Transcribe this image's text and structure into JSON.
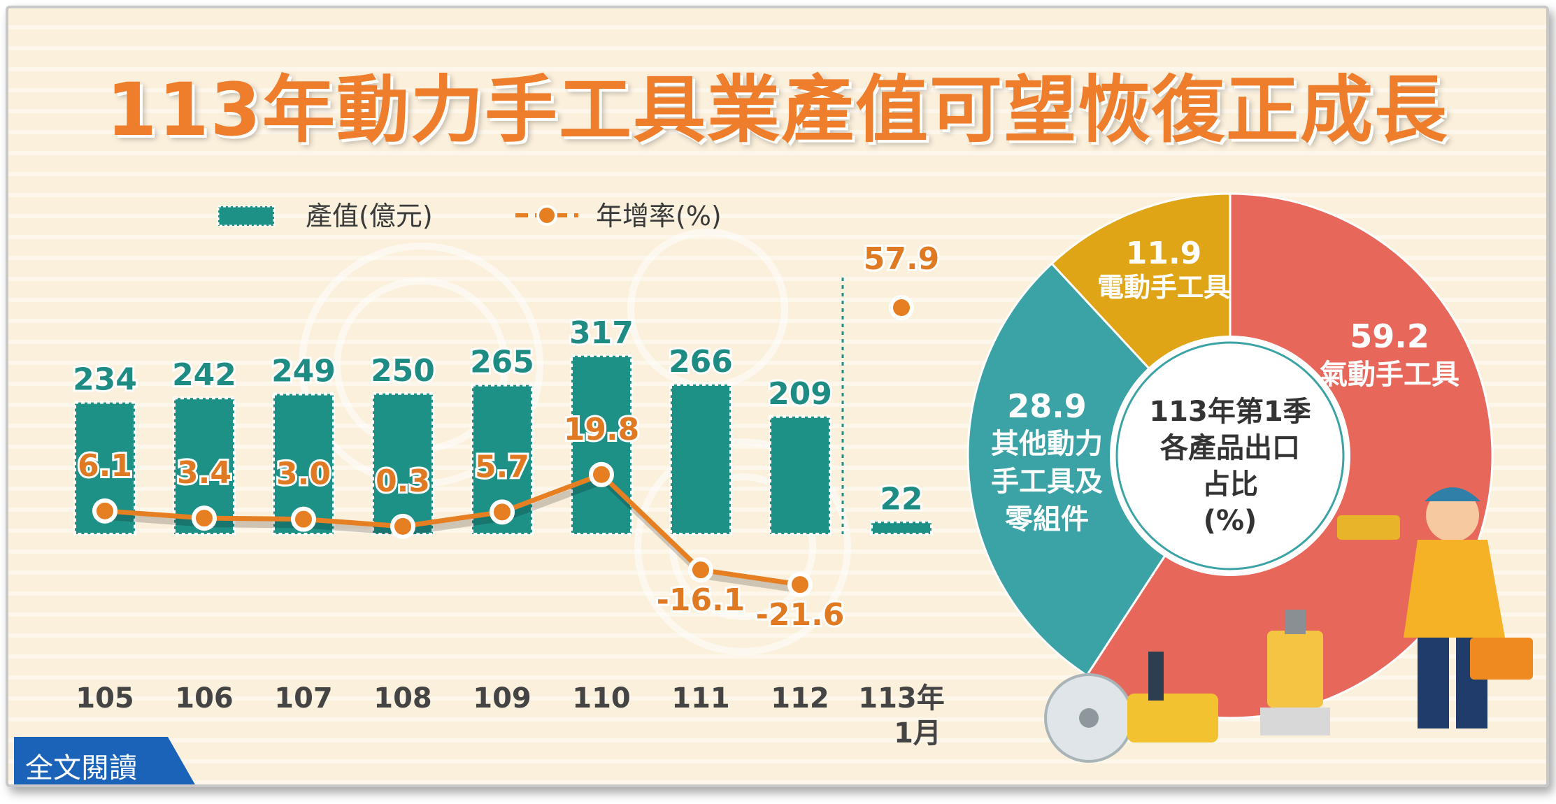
{
  "title": "113年動力手工具業產值可望恢復正成長",
  "read_full_label": "全文閱讀",
  "colors": {
    "title": "#ee7d2c",
    "bar": "#1e9187",
    "line": "#e67e22",
    "bar_label": "#1e8c83",
    "line_label": "#e07a22",
    "pie_pneumatic": "#e8675b",
    "pie_other": "#3ba3a5",
    "pie_electric": "#e0a516"
  },
  "chart_data": [
    {
      "type": "bar",
      "legend_placement": "top",
      "categories": [
        "105",
        "106",
        "107",
        "108",
        "109",
        "110",
        "111",
        "112",
        "113年1月"
      ],
      "series": [
        {
          "name": "產值(億元)",
          "type": "bar",
          "values": [
            234,
            242,
            249,
            250,
            265,
            317,
            266,
            209,
            22
          ]
        },
        {
          "name": "年增率(%)",
          "type": "line",
          "values": [
            6.1,
            3.4,
            3.0,
            0.3,
            5.7,
            19.8,
            -16.1,
            -21.6,
            57.9
          ]
        }
      ],
      "value_labels": [
        "234",
        "242",
        "249",
        "250",
        "265",
        "317",
        "266",
        "209",
        "22"
      ],
      "rate_labels": [
        "6.1",
        "3.4",
        "3.0",
        "0.3",
        "5.7",
        "19.8",
        "-16.1",
        "-21.6",
        "57.9"
      ],
      "tick_labels": [
        "105",
        "106",
        "107",
        "108",
        "109",
        "110",
        "111",
        "112",
        "113年",
        "1月"
      ],
      "grid": false
    },
    {
      "type": "pie",
      "center_label": [
        "113年第1季",
        "各產品出口",
        "占比",
        "(%)"
      ],
      "slices": [
        {
          "name": "氣動手工具",
          "value": 59.2,
          "label": "59.2"
        },
        {
          "name": "其他動力手工具及零組件",
          "value": 28.9,
          "label": "28.9",
          "label_lines": [
            "其他動力",
            "手工具及",
            "零組件"
          ]
        },
        {
          "name": "電動手工具",
          "value": 11.9,
          "label": "11.9"
        }
      ]
    }
  ]
}
